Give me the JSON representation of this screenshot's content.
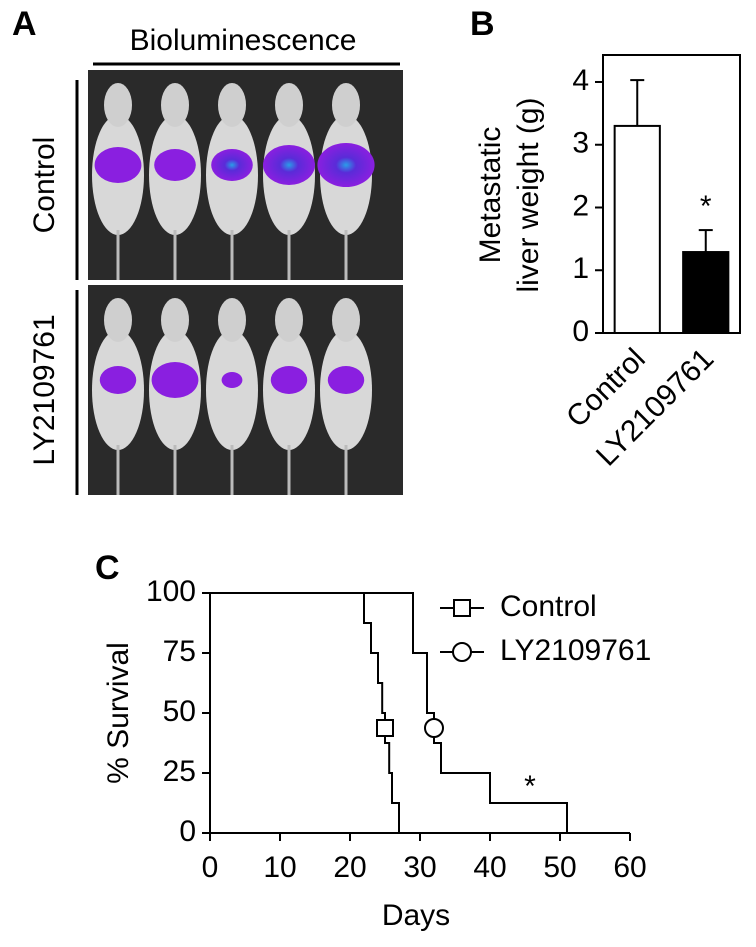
{
  "panel_a": {
    "label": "A",
    "title": "Bioluminescence",
    "rows": [
      "Control",
      "LY2109761"
    ]
  },
  "chart_data": [
    {
      "type": "bar",
      "panel_label": "B",
      "y_label": [
        "Metastatic",
        "liver weight (g)"
      ],
      "categories": [
        "Control",
        "LY2109761"
      ],
      "values": [
        3.3,
        1.29
      ],
      "errors": [
        0.73,
        0.35
      ],
      "colors": [
        "#ffffff",
        "#000000"
      ],
      "ylim": [
        0,
        4.43
      ],
      "yticks": [
        0,
        1,
        2,
        3,
        4
      ],
      "annotation": "*"
    },
    {
      "type": "step",
      "panel_label": "C",
      "x_label": "Days",
      "y_label": "% Survival",
      "xlim": [
        0,
        60
      ],
      "xticks": [
        0,
        10,
        20,
        30,
        40,
        50,
        60
      ],
      "ylim": [
        0,
        100
      ],
      "yticks": [
        0,
        25,
        50,
        75,
        100
      ],
      "series": [
        {
          "name": "Control",
          "color": "#000000",
          "marker": "square",
          "x": [
            0,
            22,
            23,
            24,
            24.6,
            25,
            25.6,
            26,
            27
          ],
          "values": [
            100,
            87.5,
            75,
            62.5,
            50,
            37.5,
            25,
            12.5,
            0
          ]
        },
        {
          "name": "LY2109761",
          "color": "#000000",
          "marker": "circle",
          "x": [
            0,
            29,
            31,
            32,
            33,
            40,
            51
          ],
          "values": [
            100,
            75,
            50,
            37.5,
            25,
            12.5,
            0
          ]
        }
      ],
      "annotation": "*"
    }
  ]
}
